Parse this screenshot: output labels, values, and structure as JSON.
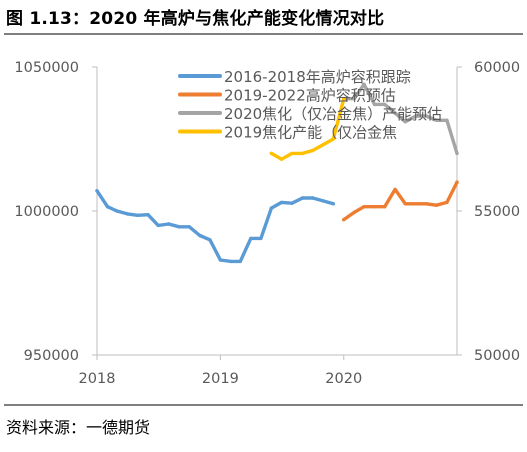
{
  "figure": {
    "title": "图 1.13：2020 年高炉与焦化产能变化情况对比",
    "source": "资料来源：一德期货"
  },
  "chart_data": {
    "type": "line",
    "x_ticks": [
      "2018",
      "2019",
      "2020"
    ],
    "y_left": {
      "ticks": [
        "1050000",
        "1000000",
        "950000"
      ],
      "range": [
        950000,
        1050000
      ]
    },
    "y_right": {
      "ticks": [
        "60000",
        "55000",
        "50000"
      ],
      "range": [
        50000,
        60000
      ]
    },
    "legend_placement": "top-center",
    "series": [
      {
        "name": "2016-2018年高炉容积跟踪",
        "axis": "left",
        "color": "#5B9BD5",
        "x": [
          "2018-01",
          "2018-02",
          "2018-03",
          "2018-04",
          "2018-05",
          "2018-06",
          "2018-07",
          "2018-08",
          "2018-09",
          "2018-10",
          "2018-11",
          "2018-12",
          "2019-01",
          "2019-02",
          "2019-03",
          "2019-04",
          "2019-05",
          "2019-06",
          "2019-07",
          "2019-08",
          "2019-09",
          "2019-10",
          "2019-11",
          "2019-12"
        ],
        "values": [
          1007000,
          1001500,
          1000000,
          999000,
          998500,
          998700,
          995000,
          995500,
          994500,
          994500,
          991500,
          990000,
          983000,
          982500,
          982500,
          990500,
          990500,
          1001000,
          1003000,
          1002700,
          1004500,
          1004500,
          1003500,
          1002500
        ]
      },
      {
        "name": "2019-2022高炉容积预估",
        "axis": "left",
        "color": "#ED7D31",
        "x": [
          "2020-01",
          "2020-02",
          "2020-03",
          "2020-04",
          "2020-05",
          "2020-06",
          "2020-07",
          "2020-08",
          "2020-09",
          "2020-10",
          "2020-11",
          "2020-12"
        ],
        "values": [
          997000,
          999500,
          1001500,
          1001500,
          1001500,
          1007500,
          1002500,
          1002500,
          1002500,
          1002000,
          1003000,
          1010000
        ]
      },
      {
        "name": "2020焦化（仅冶金焦）产能预估",
        "axis": "right",
        "color": "#A5A5A5",
        "x": [
          "2020-01",
          "2020-02",
          "2020-03",
          "2020-04",
          "2020-05",
          "2020-06",
          "2020-07",
          "2020-08",
          "2020-09",
          "2020-10",
          "2020-11",
          "2020-12"
        ],
        "values": [
          58900,
          58900,
          59400,
          58700,
          58700,
          58400,
          58100,
          58300,
          58300,
          58150,
          58150,
          57000
        ]
      },
      {
        "name": "2019焦化产能（仅冶金焦",
        "axis": "right",
        "color": "#FFC000",
        "x": [
          "2019-06",
          "2019-07",
          "2019-08",
          "2019-09",
          "2019-10",
          "2019-11",
          "2019-12",
          "2020-01"
        ],
        "values": [
          57000,
          56800,
          57000,
          57000,
          57100,
          57300,
          57500,
          58900
        ]
      }
    ]
  }
}
